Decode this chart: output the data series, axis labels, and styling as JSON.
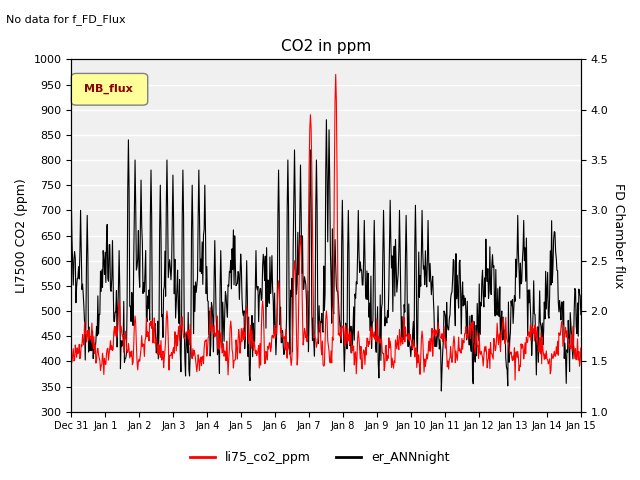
{
  "title": "CO2 in ppm",
  "subtitle": "No data for f_FD_Flux",
  "ylabel_left": "LI7500 CO2 (ppm)",
  "ylabel_right": "FD Chamber flux",
  "ylim_left": [
    300,
    1000
  ],
  "ylim_right": [
    1.0,
    4.5
  ],
  "yticks_left": [
    300,
    350,
    400,
    450,
    500,
    550,
    600,
    650,
    700,
    750,
    800,
    850,
    900,
    950,
    1000
  ],
  "yticks_right": [
    1.0,
    1.5,
    2.0,
    2.5,
    3.0,
    3.5,
    4.0,
    4.5
  ],
  "xtick_labels": [
    "Dec 31",
    "Jan 1",
    "Jan 2",
    "Jan 3",
    "Jan 4",
    "Jan 5",
    "Jan 6",
    "Jan 7",
    "Jan 8",
    "Jan 9",
    "Jan 10",
    "Jan 11",
    "Jan 12",
    "Jan 13",
    "Jan 14",
    "Jan 15"
  ],
  "legend_label_red": "li75_co2_ppm",
  "legend_label_black": "er_ANNnight",
  "mb_flux_label": "MB_flux",
  "background_color": "#f0f0f0",
  "plot_bg_color": "#f0f0f0",
  "grid_color": "white",
  "line_color_red": "red",
  "line_color_black": "black"
}
